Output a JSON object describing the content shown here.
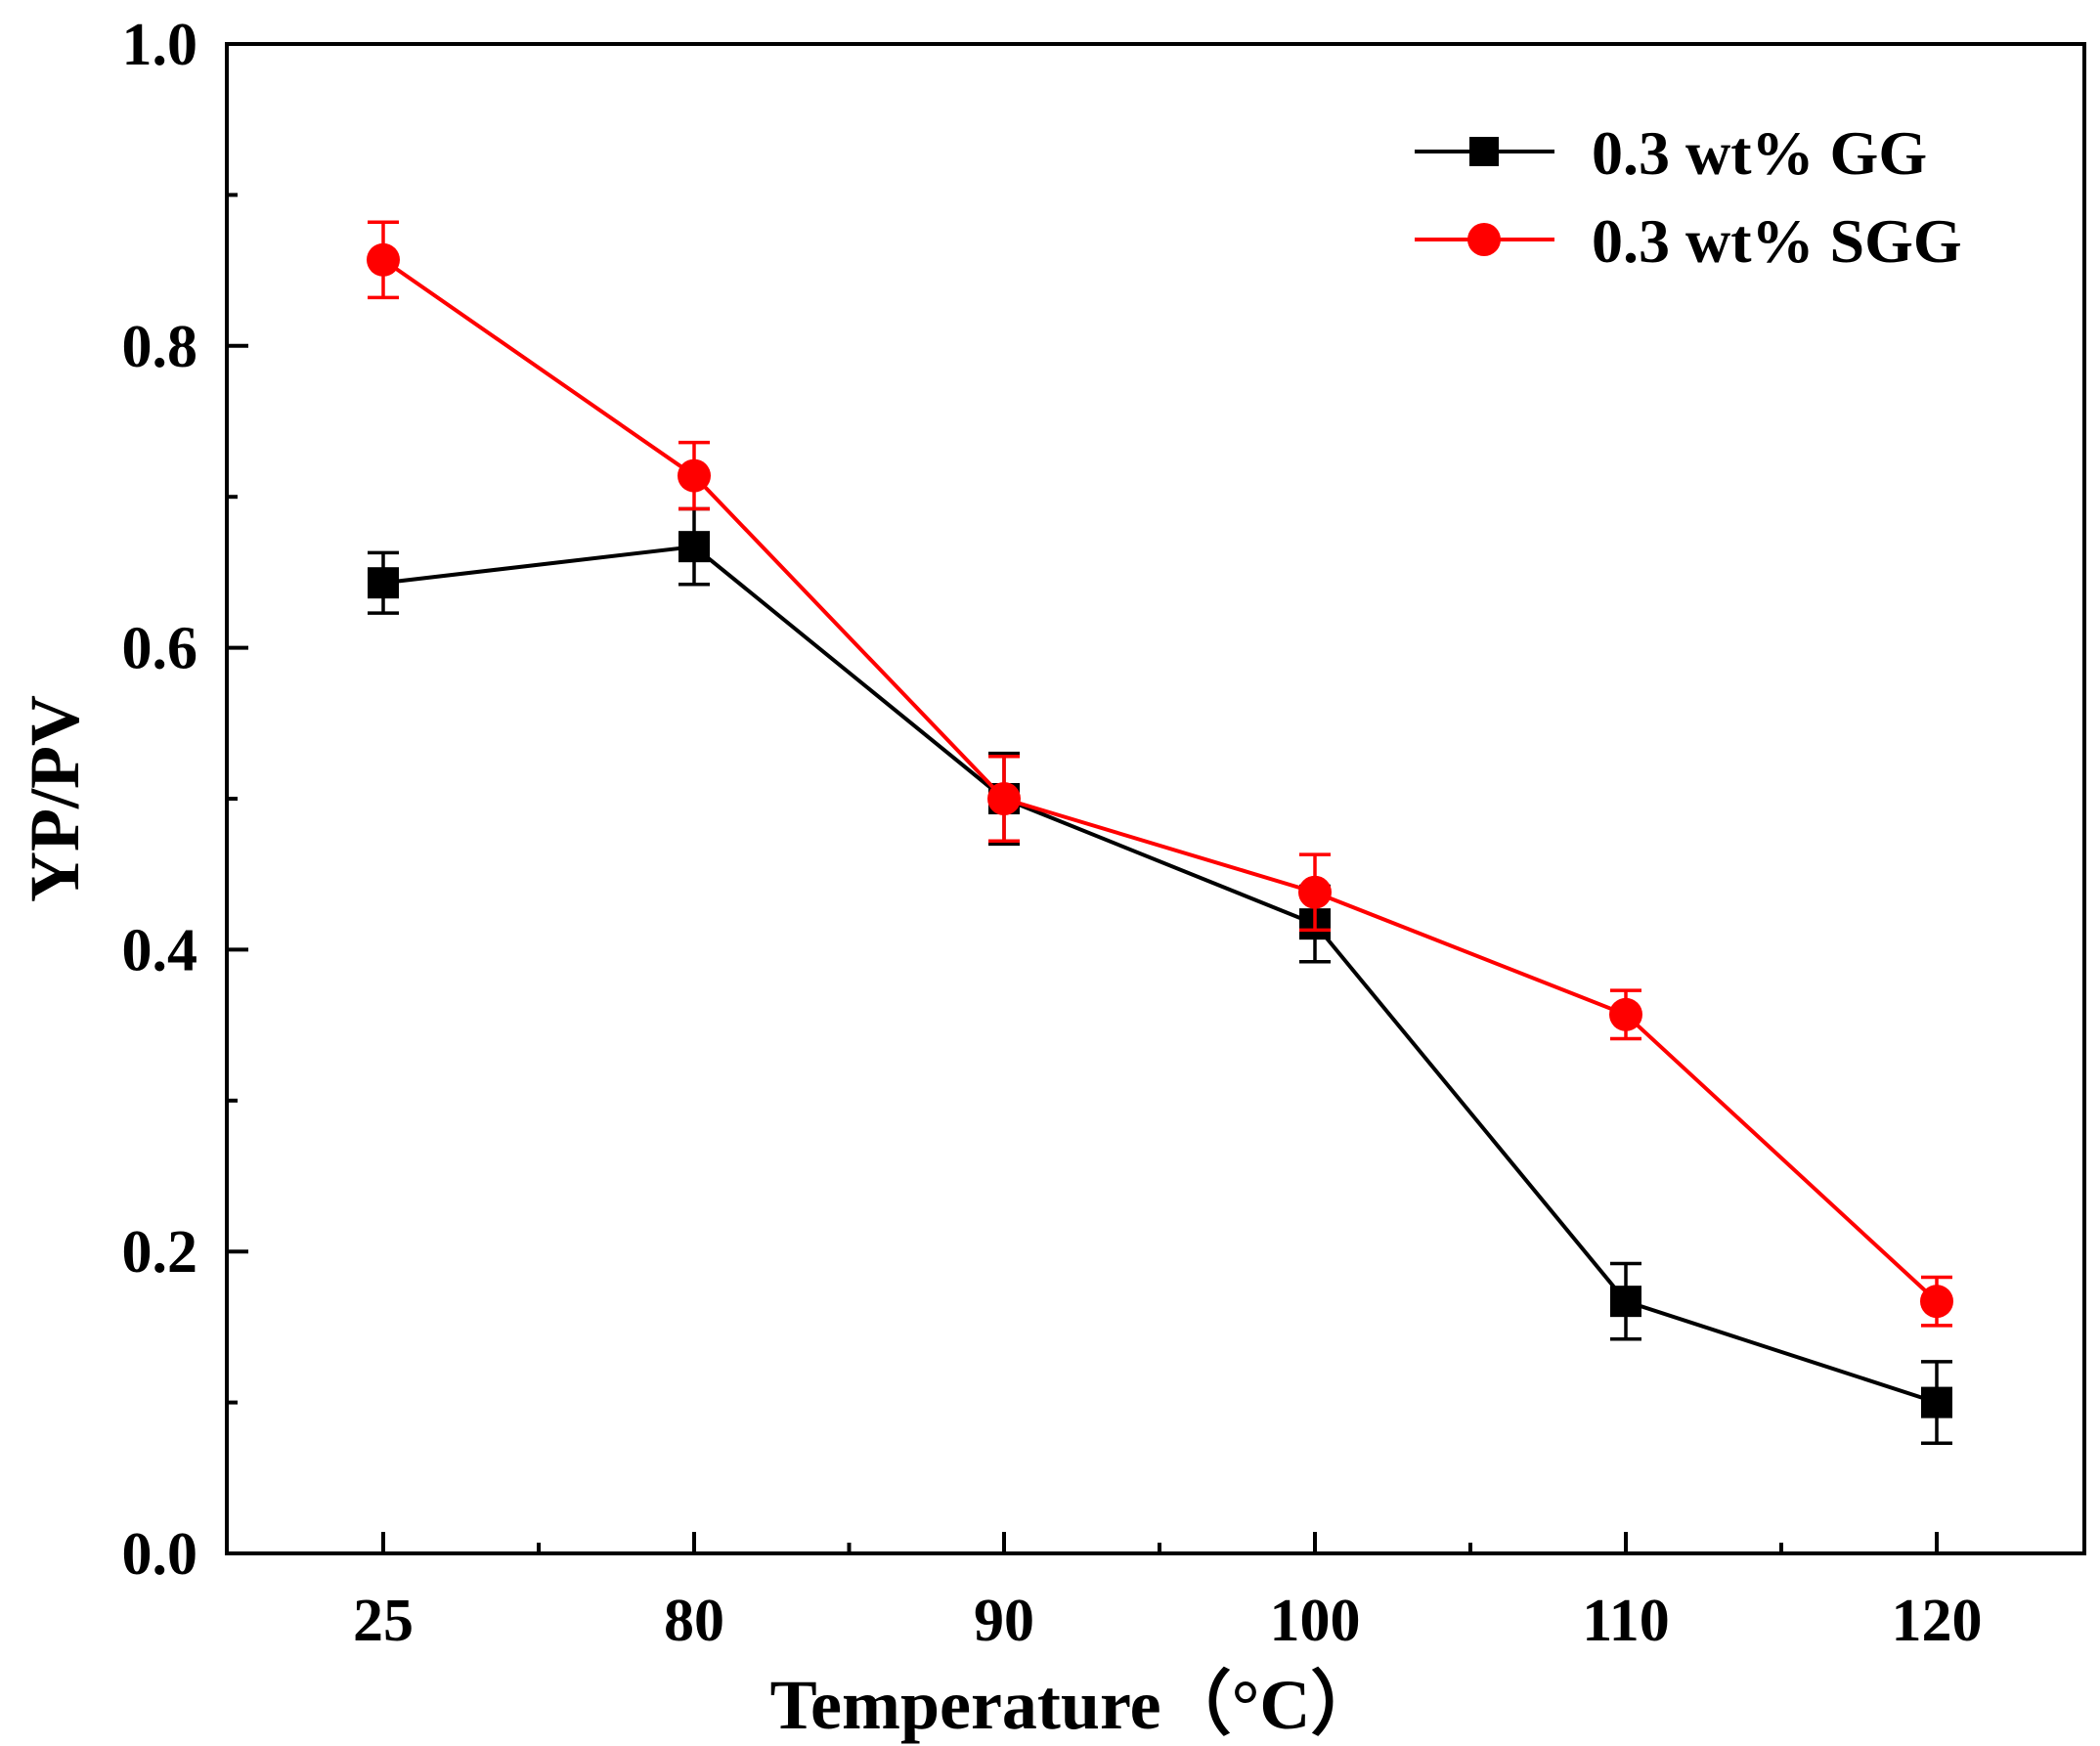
{
  "chart_data": {
    "type": "line",
    "categories": [
      "25",
      "80",
      "90",
      "100",
      "110",
      "120"
    ],
    "xlabel": "Temperature（°C）",
    "ylabel": "YP/PV",
    "ylim": [
      0.0,
      1.0
    ],
    "yticks": [
      "0.0",
      "0.2",
      "0.4",
      "0.6",
      "0.8",
      "1.0"
    ],
    "grid": false,
    "legend_position": "top-right",
    "series": [
      {
        "name": "0.3 wt% GG",
        "color": "#000000",
        "marker": "square",
        "values": [
          0.643,
          0.667,
          0.5,
          0.417,
          0.167,
          0.1
        ],
        "errors": [
          0.02,
          0.025,
          0.03,
          0.025,
          0.025,
          0.027
        ]
      },
      {
        "name": "0.3 wt% SGG",
        "color": "#ff0000",
        "marker": "circle",
        "values": [
          0.857,
          0.714,
          0.5,
          0.438,
          0.357,
          0.167
        ],
        "errors": [
          0.025,
          0.022,
          0.028,
          0.025,
          0.016,
          0.016
        ]
      }
    ]
  }
}
